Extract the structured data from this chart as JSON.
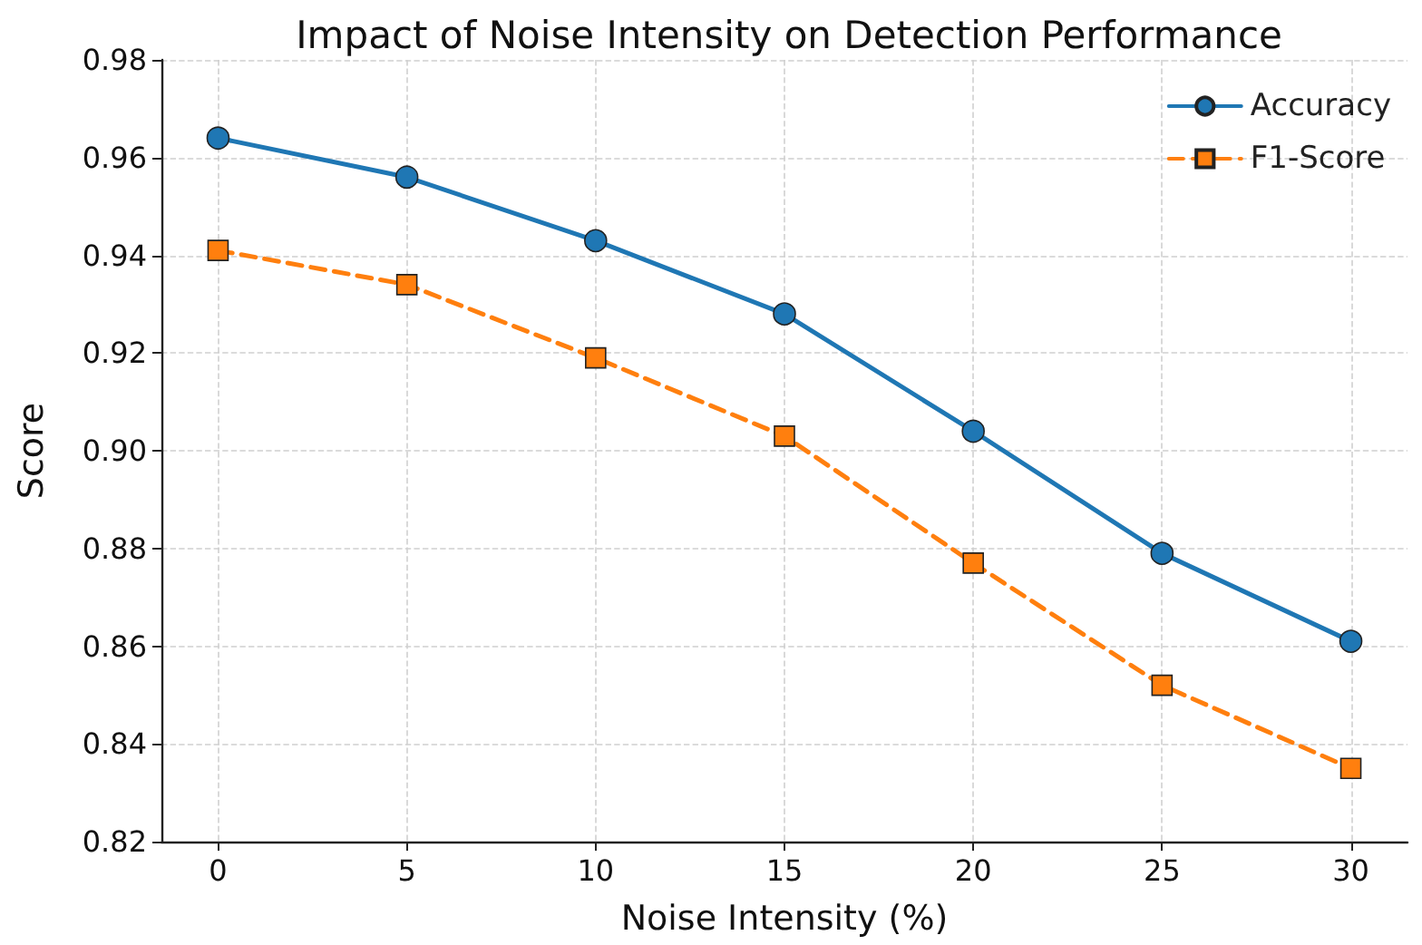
{
  "chart_data": {
    "type": "line",
    "title": "Impact of Noise Intensity on Detection Performance",
    "xlabel": "Noise Intensity (%)",
    "ylabel": "Score",
    "x": [
      0,
      5,
      10,
      15,
      20,
      25,
      30
    ],
    "series": [
      {
        "name": "Accuracy",
        "color": "#1f77b4",
        "values": [
          0.964,
          0.956,
          0.943,
          0.928,
          0.904,
          0.879,
          0.861
        ],
        "marker": "circle",
        "line_style": "solid"
      },
      {
        "name": "F1-Score",
        "color": "#ff7f0e",
        "values": [
          0.941,
          0.934,
          0.919,
          0.903,
          0.877,
          0.852,
          0.835
        ],
        "marker": "square",
        "line_style": "dashed"
      }
    ],
    "xlim": [
      -1.5,
      31.5
    ],
    "xticks": [
      0,
      5,
      10,
      15,
      20,
      25,
      30
    ],
    "ylim": [
      0.82,
      0.98
    ],
    "yticks": [
      0.82,
      0.84,
      0.86,
      0.88,
      {
        "value": 0.9,
        "label": "0.90"
      },
      0.92,
      0.94,
      0.96,
      0.98
    ],
    "grid": true,
    "legend": "top right"
  }
}
